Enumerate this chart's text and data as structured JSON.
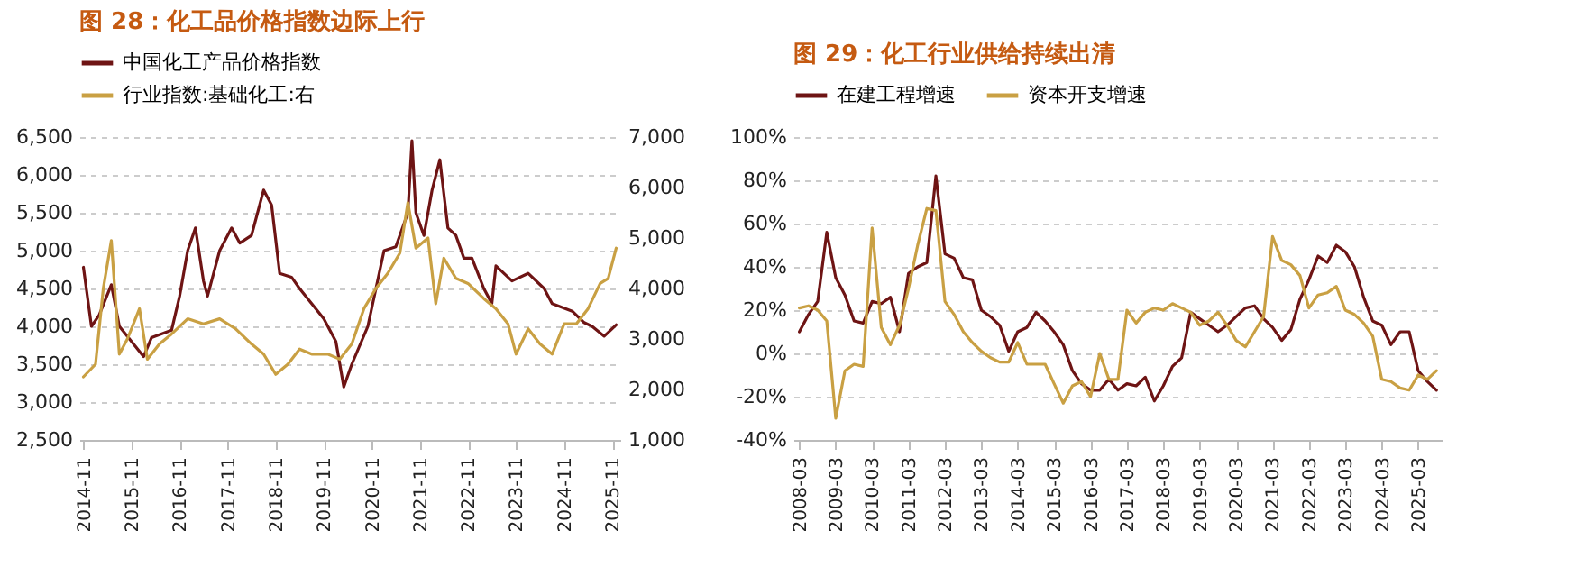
{
  "chart_data": [
    {
      "type": "line",
      "title": "图 28：化工品价格指数边际上行",
      "legend": "top",
      "grid": "y",
      "xlim": [
        "2014-10",
        "2026-01"
      ],
      "xticks": [
        "2014-11",
        "2015-11",
        "2016-11",
        "2017-11",
        "2018-11",
        "2019-11",
        "2020-11",
        "2021-11",
        "2022-11",
        "2023-11",
        "2024-11",
        "2025-11"
      ],
      "ylim": [
        2500,
        6500
      ],
      "yticks": [
        {
          "value": 2500,
          "label": "2,500"
        },
        {
          "value": 3000,
          "label": "3,000"
        },
        {
          "value": 3500,
          "label": "3,500"
        },
        {
          "value": 4000,
          "label": "4,000"
        },
        {
          "value": 4500,
          "label": "4,500"
        },
        {
          "value": 5000,
          "label": "5,000"
        },
        {
          "value": 5500,
          "label": "5,500"
        },
        {
          "value": 6000,
          "label": "6,000"
        },
        {
          "value": 6500,
          "label": "6,500"
        }
      ],
      "y2lim": [
        1000,
        7000
      ],
      "y2ticks": [
        {
          "value": 1000,
          "label": "1,000"
        },
        {
          "value": 2000,
          "label": "2,000"
        },
        {
          "value": 3000,
          "label": "3,000"
        },
        {
          "value": 4000,
          "label": "4,000"
        },
        {
          "value": 5000,
          "label": "5,000"
        },
        {
          "value": 6000,
          "label": "6,000"
        },
        {
          "value": 7000,
          "label": "7,000"
        }
      ],
      "series": [
        {
          "name": "中国化工产品价格指数",
          "color": "#6e1414",
          "x": [
            "2014-11",
            "2015-01",
            "2015-03",
            "2015-06",
            "2015-08",
            "2016-02",
            "2016-04",
            "2016-09",
            "2016-11",
            "2017-01",
            "2017-03",
            "2017-05",
            "2017-06",
            "2017-09",
            "2017-12",
            "2018-02",
            "2018-05",
            "2018-08",
            "2018-10",
            "2018-12",
            "2019-03",
            "2019-05",
            "2019-08",
            "2019-11",
            "2020-02",
            "2020-04",
            "2020-06",
            "2020-10",
            "2021-02",
            "2021-05",
            "2021-08",
            "2021-09",
            "2021-10",
            "2021-12",
            "2022-02",
            "2022-04",
            "2022-06",
            "2022-08",
            "2022-10",
            "2022-12",
            "2023-03",
            "2023-05",
            "2023-06",
            "2023-10",
            "2024-02",
            "2024-06",
            "2024-08",
            "2025-01",
            "2025-04",
            "2025-06",
            "2025-09",
            "2025-12"
          ],
          "values": [
            4780,
            4000,
            4150,
            4550,
            4000,
            3600,
            3850,
            3950,
            4400,
            5000,
            5300,
            4600,
            4400,
            5000,
            5300,
            5100,
            5200,
            5800,
            5600,
            4700,
            4650,
            4500,
            4300,
            4100,
            3800,
            3200,
            3500,
            4000,
            5000,
            5050,
            5500,
            6450,
            5500,
            5200,
            5800,
            6200,
            5300,
            5200,
            4900,
            4900,
            4500,
            4300,
            4800,
            4600,
            4700,
            4500,
            4300,
            4200,
            4050,
            4000,
            3870,
            4020
          ]
        },
        {
          "name": "行业指数:基础化工:右",
          "color": "#c9a043",
          "axis": "y2",
          "x": [
            "2014-11",
            "2015-02",
            "2015-04",
            "2015-06",
            "2015-08",
            "2015-10",
            "2016-01",
            "2016-03",
            "2016-06",
            "2016-09",
            "2017-01",
            "2017-05",
            "2017-09",
            "2018-01",
            "2018-05",
            "2018-08",
            "2018-11",
            "2019-02",
            "2019-05",
            "2019-08",
            "2019-12",
            "2020-03",
            "2020-06",
            "2020-09",
            "2020-12",
            "2021-03",
            "2021-06",
            "2021-08",
            "2021-10",
            "2022-01",
            "2022-03",
            "2022-05",
            "2022-08",
            "2022-11",
            "2023-03",
            "2023-06",
            "2023-09",
            "2023-11",
            "2024-02",
            "2024-05",
            "2024-08",
            "2024-11",
            "2025-02",
            "2025-05",
            "2025-08",
            "2025-10",
            "2025-12"
          ],
          "values": [
            2250,
            2500,
            4000,
            4950,
            2700,
            3000,
            3600,
            2600,
            2900,
            3100,
            3400,
            3300,
            3400,
            3200,
            2900,
            2700,
            2300,
            2500,
            2800,
            2700,
            2700,
            2600,
            2900,
            3600,
            4000,
            4300,
            4700,
            5700,
            4800,
            5000,
            3700,
            4600,
            4200,
            4100,
            3800,
            3600,
            3300,
            2700,
            3200,
            2900,
            2700,
            3300,
            3300,
            3600,
            4100,
            4200,
            4800
          ]
        }
      ]
    },
    {
      "type": "line",
      "title": "图 29：化工行业供给持续出清",
      "legend": "top",
      "grid": "y",
      "xlim": [
        "2008-01",
        "2025-11"
      ],
      "xticks": [
        "2008-03",
        "2009-03",
        "2010-03",
        "2011-03",
        "2012-03",
        "2013-03",
        "2014-03",
        "2015-03",
        "2016-03",
        "2017-03",
        "2018-03",
        "2019-03",
        "2020-03",
        "2021-03",
        "2022-03",
        "2023-03",
        "2024-03",
        "2025-03"
      ],
      "ylim": [
        -40,
        100
      ],
      "yticks": [
        {
          "value": -40,
          "label": "-40%"
        },
        {
          "value": -20,
          "label": "-20%"
        },
        {
          "value": 0,
          "label": "0%"
        },
        {
          "value": 20,
          "label": "20%"
        },
        {
          "value": 40,
          "label": "40%"
        },
        {
          "value": 60,
          "label": "60%"
        },
        {
          "value": 80,
          "label": "80%"
        },
        {
          "value": 100,
          "label": "100%"
        }
      ],
      "x": [
        "2008-03",
        "2008-06",
        "2008-09",
        "2008-12",
        "2009-03",
        "2009-06",
        "2009-09",
        "2009-12",
        "2010-03",
        "2010-06",
        "2010-09",
        "2010-12",
        "2011-03",
        "2011-06",
        "2011-09",
        "2011-12",
        "2012-03",
        "2012-06",
        "2012-09",
        "2012-12",
        "2013-03",
        "2013-06",
        "2013-09",
        "2013-12",
        "2014-03",
        "2014-06",
        "2014-09",
        "2014-12",
        "2015-03",
        "2015-06",
        "2015-09",
        "2015-12",
        "2016-03",
        "2016-06",
        "2016-09",
        "2016-12",
        "2017-03",
        "2017-06",
        "2017-09",
        "2017-12",
        "2018-03",
        "2018-06",
        "2018-09",
        "2018-12",
        "2019-03",
        "2019-06",
        "2019-09",
        "2019-12",
        "2020-03",
        "2020-06",
        "2020-09",
        "2020-12",
        "2021-03",
        "2021-06",
        "2021-09",
        "2021-12",
        "2022-03",
        "2022-06",
        "2022-09",
        "2022-12",
        "2023-03",
        "2023-06",
        "2023-09",
        "2023-12",
        "2024-03",
        "2024-06",
        "2024-09",
        "2024-12",
        "2025-03",
        "2025-06",
        "2025-09"
      ],
      "series": [
        {
          "name": "在建工程增速",
          "color": "#6e1414",
          "values": [
            10,
            18,
            24,
            56,
            35,
            27,
            15,
            14,
            24,
            23,
            26,
            10,
            37,
            40,
            42,
            82,
            46,
            44,
            35,
            34,
            20,
            17,
            13,
            1,
            10,
            12,
            19,
            15,
            10,
            4,
            -8,
            -14,
            -17,
            -17,
            -12,
            -17,
            -14,
            -15,
            -11,
            -22,
            -15,
            -6,
            -2,
            19,
            16,
            13,
            10,
            13,
            17,
            21,
            22,
            16,
            12,
            6,
            11,
            25,
            34,
            45,
            42,
            50,
            47,
            40,
            26,
            15,
            13,
            4,
            10,
            10,
            -8,
            -13,
            -17
          ]
        },
        {
          "name": "资本开支增速",
          "color": "#c9a043",
          "values": [
            21,
            22,
            20,
            15,
            -30,
            -8,
            -5,
            -6,
            58,
            12,
            4,
            13,
            30,
            50,
            67,
            66,
            24,
            18,
            10,
            5,
            1,
            -2,
            -4,
            -4,
            5,
            -5,
            -5,
            -5,
            -14,
            -23,
            -15,
            -13,
            -20,
            0,
            -12,
            -12,
            20,
            14,
            19,
            21,
            20,
            23,
            21,
            19,
            13,
            15,
            19,
            13,
            6,
            3,
            10,
            17,
            54,
            43,
            41,
            36,
            21,
            27,
            28,
            31,
            20,
            18,
            14,
            8,
            -12,
            -13,
            -16,
            -17,
            -10,
            -12,
            -8
          ]
        }
      ]
    }
  ]
}
